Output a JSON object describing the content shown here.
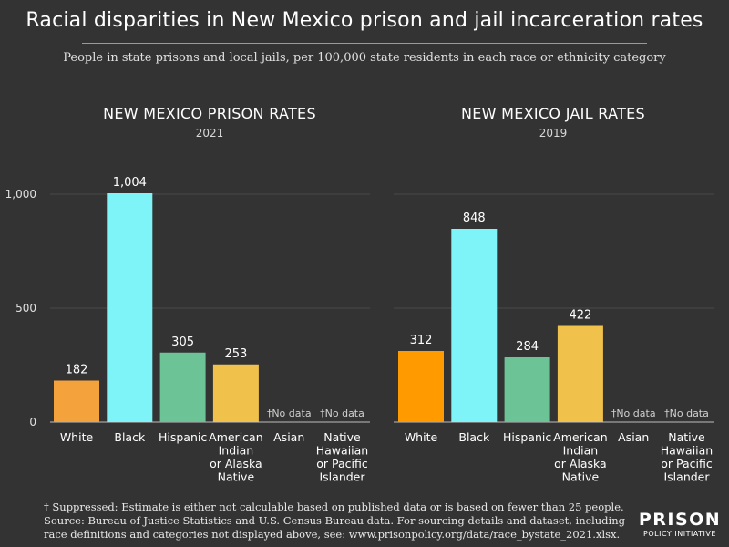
{
  "header": {
    "title": "Racial disparities in New Mexico prison and jail incarceration rates",
    "subtitle": "People in state prisons and local jails, per 100,000 state residents in each race or ethnicity category"
  },
  "chart_data": [
    {
      "type": "bar",
      "title": "NEW MEXICO PRISON RATES",
      "subtitle": "2021",
      "categories": [
        "White",
        "Black",
        "Hispanic",
        "American Indian or Alaska Native",
        "Asian",
        "Native Hawaiian or Pacific Islander"
      ],
      "category_lines": [
        [
          "White"
        ],
        [
          "Black"
        ],
        [
          "Hispanic"
        ],
        [
          "American",
          "Indian",
          "or Alaska",
          "Native"
        ],
        [
          "Asian"
        ],
        [
          "Native",
          "Hawaiian",
          "or Pacific",
          "Islander"
        ]
      ],
      "values": [
        182,
        1004,
        305,
        253,
        null,
        null
      ],
      "value_labels": [
        "182",
        "1,004",
        "305",
        "253",
        "†No data",
        "†No data"
      ],
      "colors": [
        "#f4a23c",
        "#7ff4f8",
        "#6cc396",
        "#f1c24b",
        null,
        null
      ],
      "ylim": [
        0,
        1004
      ],
      "yticks": [
        0,
        500,
        1000
      ],
      "ytick_labels": [
        "0",
        "500",
        "1,000"
      ],
      "grid": true
    },
    {
      "type": "bar",
      "title": "NEW MEXICO JAIL RATES",
      "subtitle": "2019",
      "categories": [
        "White",
        "Black",
        "Hispanic",
        "American Indian or Alaska Native",
        "Asian",
        "Native Hawaiian or Pacific Islander"
      ],
      "category_lines": [
        [
          "White"
        ],
        [
          "Black"
        ],
        [
          "Hispanic"
        ],
        [
          "American",
          "Indian",
          "or Alaska",
          "Native"
        ],
        [
          "Asian"
        ],
        [
          "Native",
          "Hawaiian",
          "or Pacific",
          "Islander"
        ]
      ],
      "values": [
        312,
        848,
        284,
        422,
        null,
        null
      ],
      "value_labels": [
        "312",
        "848",
        "284",
        "422",
        "†No data",
        "†No data"
      ],
      "colors": [
        "#ff9a00",
        "#7ff4f8",
        "#6cc396",
        "#f1c24b",
        null,
        null
      ],
      "ylim": [
        0,
        1004
      ],
      "grid": true
    }
  ],
  "footnotes": [
    "† Suppressed: Estimate is either not calculable based on published data or is based on fewer than 25 people.",
    "Source: Bureau of Justice Statistics and U.S. Census Bureau data. For sourcing details and dataset, including",
    "race definitions and categories not displayed above, see: www.prisonpolicy.org/data/race_bystate_2021.xlsx."
  ],
  "logo": {
    "line1": "PRISON",
    "line2": "POLICY INITIATIVE"
  }
}
